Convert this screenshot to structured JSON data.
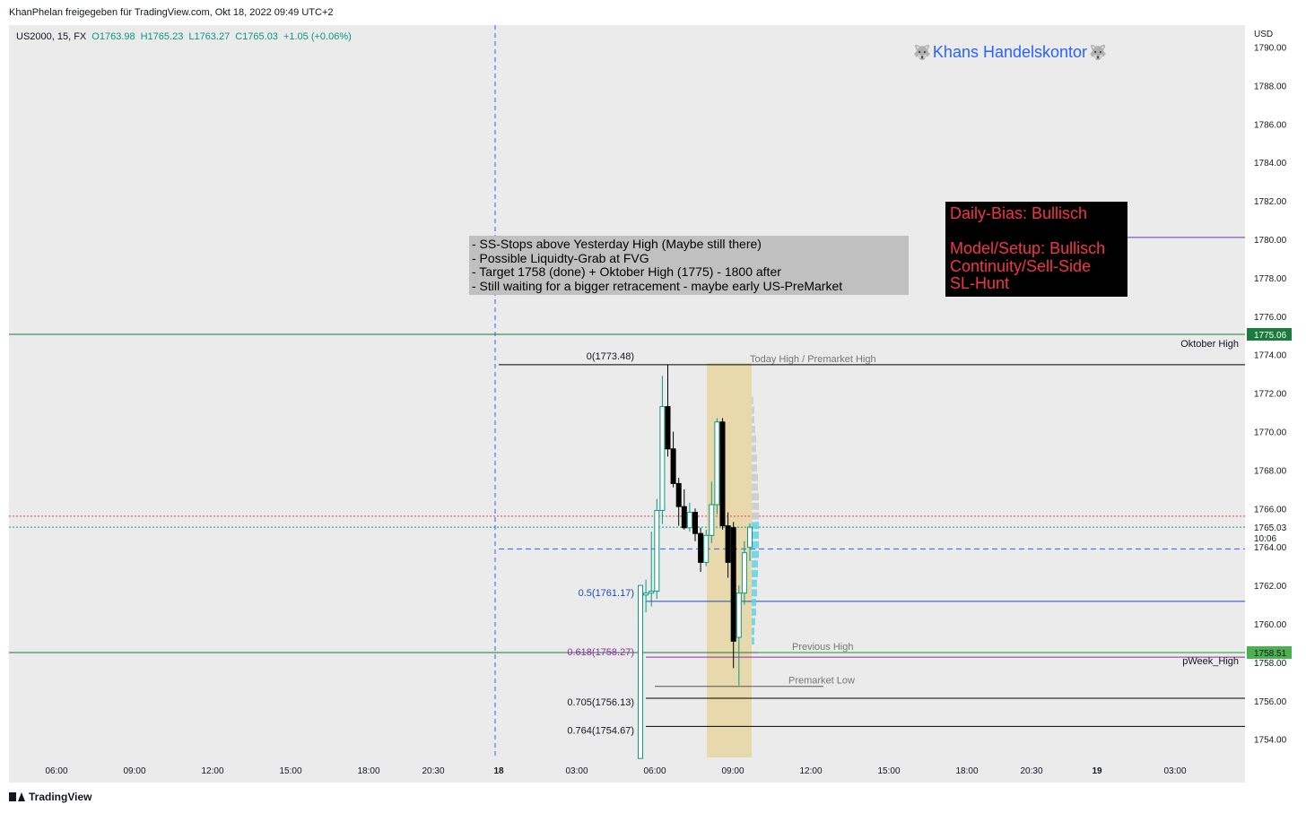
{
  "header": {
    "published_by": "KhanPhelan freigegeben für TradingView.com, Okt 18, 2022 09:49 UTC+2"
  },
  "legend": {
    "symbol": "US2000, 15, FX",
    "open": "O1763.98",
    "high": "H1765.23",
    "low": "L1763.27",
    "close": "C1765.03",
    "change": "+1.05 (+0.06%)"
  },
  "watermark": {
    "icon_left": "wolf-emoji-icon",
    "text": "Khans Handelskontor",
    "icon_right": "wolf-emoji-icon"
  },
  "notes": {
    "lines": [
      "- SS-Stops above Yesterday High (Maybe still there)",
      "- Possible Liquidty-Grab at FVG",
      "- Target 1758 (done) + Oktober High (1775) - 1800 after",
      "- Still waiting for a bigger retracement - maybe early US-PreMarket"
    ]
  },
  "bias": {
    "line1": "Daily-Bias: Bullisch",
    "line2": "",
    "line3": "Model/Setup: Bullisch",
    "line4": "Continuity/Sell-Side",
    "line5": "SL-Hunt"
  },
  "footer": {
    "brand": "TradingView"
  },
  "colors": {
    "up_border": "#089981",
    "down_fill": "#000000",
    "price_label_green": "#4caf50",
    "price_label_dark_green": "#1b7a3e",
    "highlight": "#e8d7a6",
    "fib_blue": "#2962ff",
    "fib_purple": "#9c27b0",
    "volume_profile": "#5bd1e6"
  },
  "chart_data": {
    "type": "candlestick",
    "symbol": "US2000",
    "timeframe": "15",
    "y_axis": {
      "currency": "USD",
      "range": [
        1753.0,
        1791.0
      ],
      "ticks": [
        "1754.00",
        "1756.00",
        "1758.00",
        "1760.00",
        "1762.00",
        "1764.00",
        "1766.00",
        "1768.00",
        "1770.00",
        "1772.00",
        "1774.00",
        "1776.00",
        "1778.00",
        "1780.00",
        "1782.00",
        "1784.00",
        "1786.00",
        "1788.00",
        "1790.00"
      ]
    },
    "x_axis": {
      "ticks": [
        "06:00",
        "09:00",
        "12:00",
        "15:00",
        "18:00",
        "20:30",
        "18",
        "03:00",
        "06:00",
        "09:00",
        "12:00",
        "15:00",
        "18:00",
        "20:30",
        "19",
        "03:00"
      ]
    },
    "price_labels": [
      {
        "value": "1775.06",
        "text": "1775.06"
      },
      {
        "value": "1765.03",
        "text": "1765.03",
        "countdown": "10:06"
      },
      {
        "value": "1758.51",
        "text": "1758.51"
      }
    ],
    "levels": [
      {
        "price": 1775.06,
        "label": "Oktober High"
      },
      {
        "price": 1773.48,
        "label": "Today High / Premarket High"
      },
      {
        "price": 1758.51,
        "label": "Previous High"
      },
      {
        "price": 1758.27,
        "label": "pWeek_High"
      },
      {
        "price": 1756.75,
        "label": "Premarket Low"
      },
      {
        "price": 1780.1,
        "label": ""
      },
      {
        "price": 1763.9,
        "label": ""
      },
      {
        "price": 1765.6,
        "label": ""
      },
      {
        "price": 1765.03,
        "label": ""
      }
    ],
    "fibonacci": [
      {
        "level": "0",
        "price": "1773.48",
        "text": "0(1773.48)"
      },
      {
        "level": "0.5",
        "price": "1761.17",
        "text": "0.5(1761.17)"
      },
      {
        "level": "0.618",
        "price": "1758.27",
        "text": "0.618(1758.27)"
      },
      {
        "level": "0.705",
        "price": "1756.13",
        "text": "0.705(1756.13)"
      },
      {
        "level": "0.764",
        "price": "1754.67",
        "text": "0.764(1754.67)"
      }
    ],
    "candles": [
      {
        "o": 1753.0,
        "h": 1762.0,
        "l": 1753.0,
        "c": 1762.0
      },
      {
        "o": 1761.5,
        "h": 1762.3,
        "l": 1760.6,
        "c": 1761.6
      },
      {
        "o": 1761.6,
        "h": 1764.8,
        "l": 1760.9,
        "c": 1761.7
      },
      {
        "o": 1761.7,
        "h": 1766.5,
        "l": 1761.3,
        "c": 1765.9
      },
      {
        "o": 1765.9,
        "h": 1772.9,
        "l": 1765.2,
        "c": 1771.3
      },
      {
        "o": 1771.3,
        "h": 1773.5,
        "l": 1768.7,
        "c": 1769.1
      },
      {
        "o": 1769.1,
        "h": 1770.0,
        "l": 1767.1,
        "c": 1767.3
      },
      {
        "o": 1767.3,
        "h": 1767.6,
        "l": 1765.1,
        "c": 1766.1
      },
      {
        "o": 1766.1,
        "h": 1767.0,
        "l": 1764.9,
        "c": 1765.0
      },
      {
        "o": 1765.0,
        "h": 1766.3,
        "l": 1764.8,
        "c": 1765.8
      },
      {
        "o": 1765.8,
        "h": 1766.0,
        "l": 1764.3,
        "c": 1764.7
      },
      {
        "o": 1764.7,
        "h": 1765.0,
        "l": 1762.7,
        "c": 1763.2
      },
      {
        "o": 1763.2,
        "h": 1764.9,
        "l": 1763.0,
        "c": 1764.6
      },
      {
        "o": 1764.6,
        "h": 1767.4,
        "l": 1764.2,
        "c": 1766.2
      },
      {
        "o": 1766.2,
        "h": 1770.7,
        "l": 1765.7,
        "c": 1770.5
      },
      {
        "o": 1770.5,
        "h": 1770.7,
        "l": 1764.9,
        "c": 1765.1
      },
      {
        "o": 1765.1,
        "h": 1765.8,
        "l": 1762.4,
        "c": 1763.2
      },
      {
        "o": 1765.0,
        "h": 1765.3,
        "l": 1757.7,
        "c": 1759.1
      },
      {
        "o": 1759.3,
        "h": 1762.0,
        "l": 1756.8,
        "c": 1761.6
      },
      {
        "o": 1761.6,
        "h": 1764.3,
        "l": 1761.0,
        "c": 1763.7
      },
      {
        "o": 1763.98,
        "h": 1765.23,
        "l": 1763.27,
        "c": 1765.03
      }
    ]
  }
}
